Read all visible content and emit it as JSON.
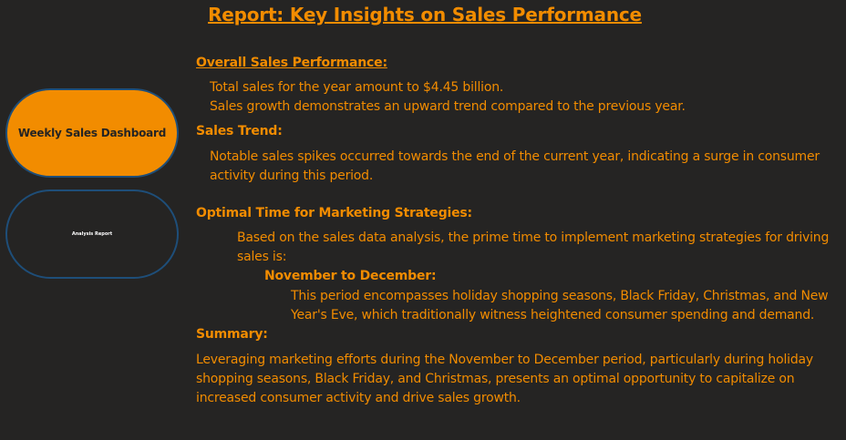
{
  "report_title": "Report: Key Insights on Sales Performance",
  "nav": {
    "weekly_dashboard": "Weekly Sales Dashboard",
    "analysis_report": "Analysis Report"
  },
  "sections": {
    "overall": {
      "heading": "Overall Sales Performance:",
      "line1": "Total sales for the year amount to $4.45 billion.",
      "line2": "Sales growth demonstrates an upward trend compared to the previous year."
    },
    "trend": {
      "heading": "Sales Trend:",
      "line1": "Notable sales spikes occurred towards the end of the current year, indicating a surge in consumer",
      "line2": "activity during this period."
    },
    "optimal": {
      "heading": "Optimal Time for Marketing Strategies:",
      "line1": "Based on the sales data analysis, the prime time to implement marketing strategies for driving",
      "line2": "sales is:",
      "period_heading": "November to December:",
      "period_line1": "This period encompasses holiday shopping seasons, Black Friday, Christmas, and New",
      "period_line2": "Year's Eve, which traditionally witness heightened consumer spending and demand."
    },
    "summary": {
      "heading": "Summary:",
      "line1": "Leveraging marketing efforts during the November to December period, particularly during holiday",
      "line2": "shopping seasons, Black Friday, and Christmas, presents an optimal opportunity to capitalize on",
      "line3": "increased consumer activity and drive sales growth."
    }
  },
  "colors": {
    "background": "#252423",
    "accent": "#F28C00",
    "button_border": "#1E4E79",
    "analysis_label": "#FFFFFF"
  }
}
